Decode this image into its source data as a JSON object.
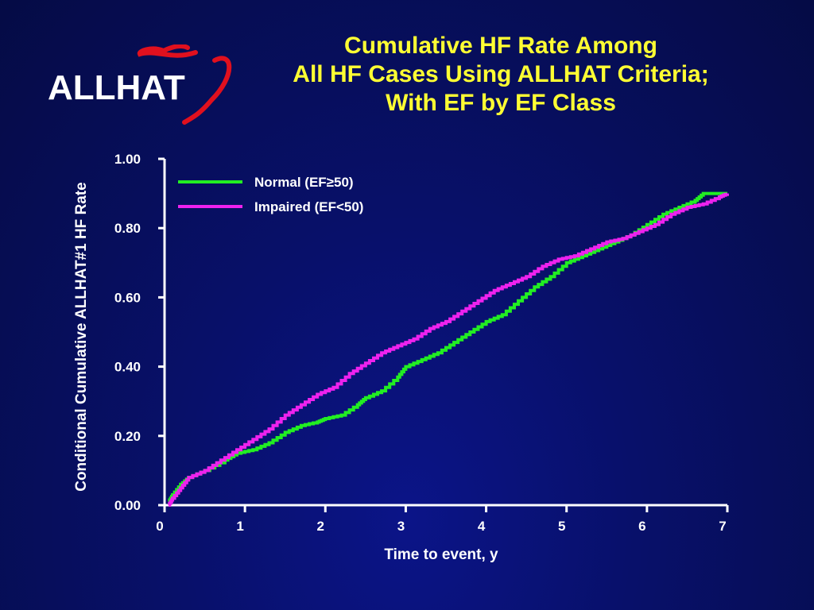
{
  "logo": {
    "text": "ALLHAT",
    "icon": "heart-outline-icon",
    "color": "#e0101e"
  },
  "title_lines": [
    "Cumulative HF Rate Among",
    "All HF Cases Using ALLHAT Criteria;",
    "With EF by EF Class"
  ],
  "colors": {
    "title": "#ffff33",
    "axis": "#ffffff",
    "normal": "#22ee22",
    "impaired": "#ee22ee"
  },
  "chart_data": {
    "type": "line",
    "xlabel": "Time to event, y",
    "ylabel": "Conditional Cumulative ALLHAT#1 HF Rate",
    "xlim": [
      0,
      7
    ],
    "ylim": [
      0,
      1
    ],
    "x_ticks": [
      "0",
      "1",
      "2",
      "3",
      "4",
      "5",
      "6",
      "7"
    ],
    "y_ticks": [
      "0.00",
      "0.20",
      "0.40",
      "0.60",
      "0.80",
      "1.00"
    ],
    "grid": false,
    "legend_position": "top-left",
    "series": [
      {
        "name": "Normal (EF≥50)",
        "color": "#22ee22",
        "points": [
          [
            0.05,
            0.01
          ],
          [
            0.1,
            0.03
          ],
          [
            0.2,
            0.06
          ],
          [
            0.3,
            0.08
          ],
          [
            0.5,
            0.1
          ],
          [
            0.75,
            0.13
          ],
          [
            0.9,
            0.15
          ],
          [
            1.1,
            0.16
          ],
          [
            1.3,
            0.18
          ],
          [
            1.5,
            0.21
          ],
          [
            1.7,
            0.23
          ],
          [
            1.9,
            0.24
          ],
          [
            2.0,
            0.25
          ],
          [
            2.2,
            0.26
          ],
          [
            2.4,
            0.29
          ],
          [
            2.5,
            0.31
          ],
          [
            2.7,
            0.33
          ],
          [
            2.9,
            0.37
          ],
          [
            3.0,
            0.4
          ],
          [
            3.2,
            0.42
          ],
          [
            3.4,
            0.44
          ],
          [
            3.6,
            0.47
          ],
          [
            3.8,
            0.5
          ],
          [
            4.0,
            0.53
          ],
          [
            4.2,
            0.55
          ],
          [
            4.4,
            0.59
          ],
          [
            4.6,
            0.63
          ],
          [
            4.8,
            0.66
          ],
          [
            5.0,
            0.7
          ],
          [
            5.2,
            0.72
          ],
          [
            5.4,
            0.74
          ],
          [
            5.6,
            0.76
          ],
          [
            5.8,
            0.78
          ],
          [
            6.0,
            0.81
          ],
          [
            6.2,
            0.84
          ],
          [
            6.4,
            0.86
          ],
          [
            6.6,
            0.88
          ],
          [
            6.7,
            0.9
          ],
          [
            7.0,
            0.9
          ]
        ]
      },
      {
        "name": "Impaired (EF<50)",
        "color": "#ee22ee",
        "points": [
          [
            0.05,
            0.0
          ],
          [
            0.1,
            0.02
          ],
          [
            0.2,
            0.05
          ],
          [
            0.3,
            0.08
          ],
          [
            0.5,
            0.1
          ],
          [
            0.7,
            0.13
          ],
          [
            0.9,
            0.16
          ],
          [
            1.1,
            0.19
          ],
          [
            1.3,
            0.22
          ],
          [
            1.5,
            0.26
          ],
          [
            1.7,
            0.29
          ],
          [
            1.9,
            0.32
          ],
          [
            2.1,
            0.34
          ],
          [
            2.3,
            0.38
          ],
          [
            2.5,
            0.41
          ],
          [
            2.7,
            0.44
          ],
          [
            2.9,
            0.46
          ],
          [
            3.1,
            0.48
          ],
          [
            3.3,
            0.51
          ],
          [
            3.5,
            0.53
          ],
          [
            3.7,
            0.56
          ],
          [
            3.9,
            0.59
          ],
          [
            4.1,
            0.62
          ],
          [
            4.3,
            0.64
          ],
          [
            4.5,
            0.66
          ],
          [
            4.7,
            0.69
          ],
          [
            4.9,
            0.71
          ],
          [
            5.1,
            0.72
          ],
          [
            5.3,
            0.74
          ],
          [
            5.5,
            0.76
          ],
          [
            5.7,
            0.77
          ],
          [
            5.9,
            0.79
          ],
          [
            6.1,
            0.81
          ],
          [
            6.3,
            0.84
          ],
          [
            6.5,
            0.86
          ],
          [
            6.7,
            0.87
          ],
          [
            6.9,
            0.89
          ],
          [
            7.0,
            0.9
          ]
        ]
      }
    ]
  }
}
